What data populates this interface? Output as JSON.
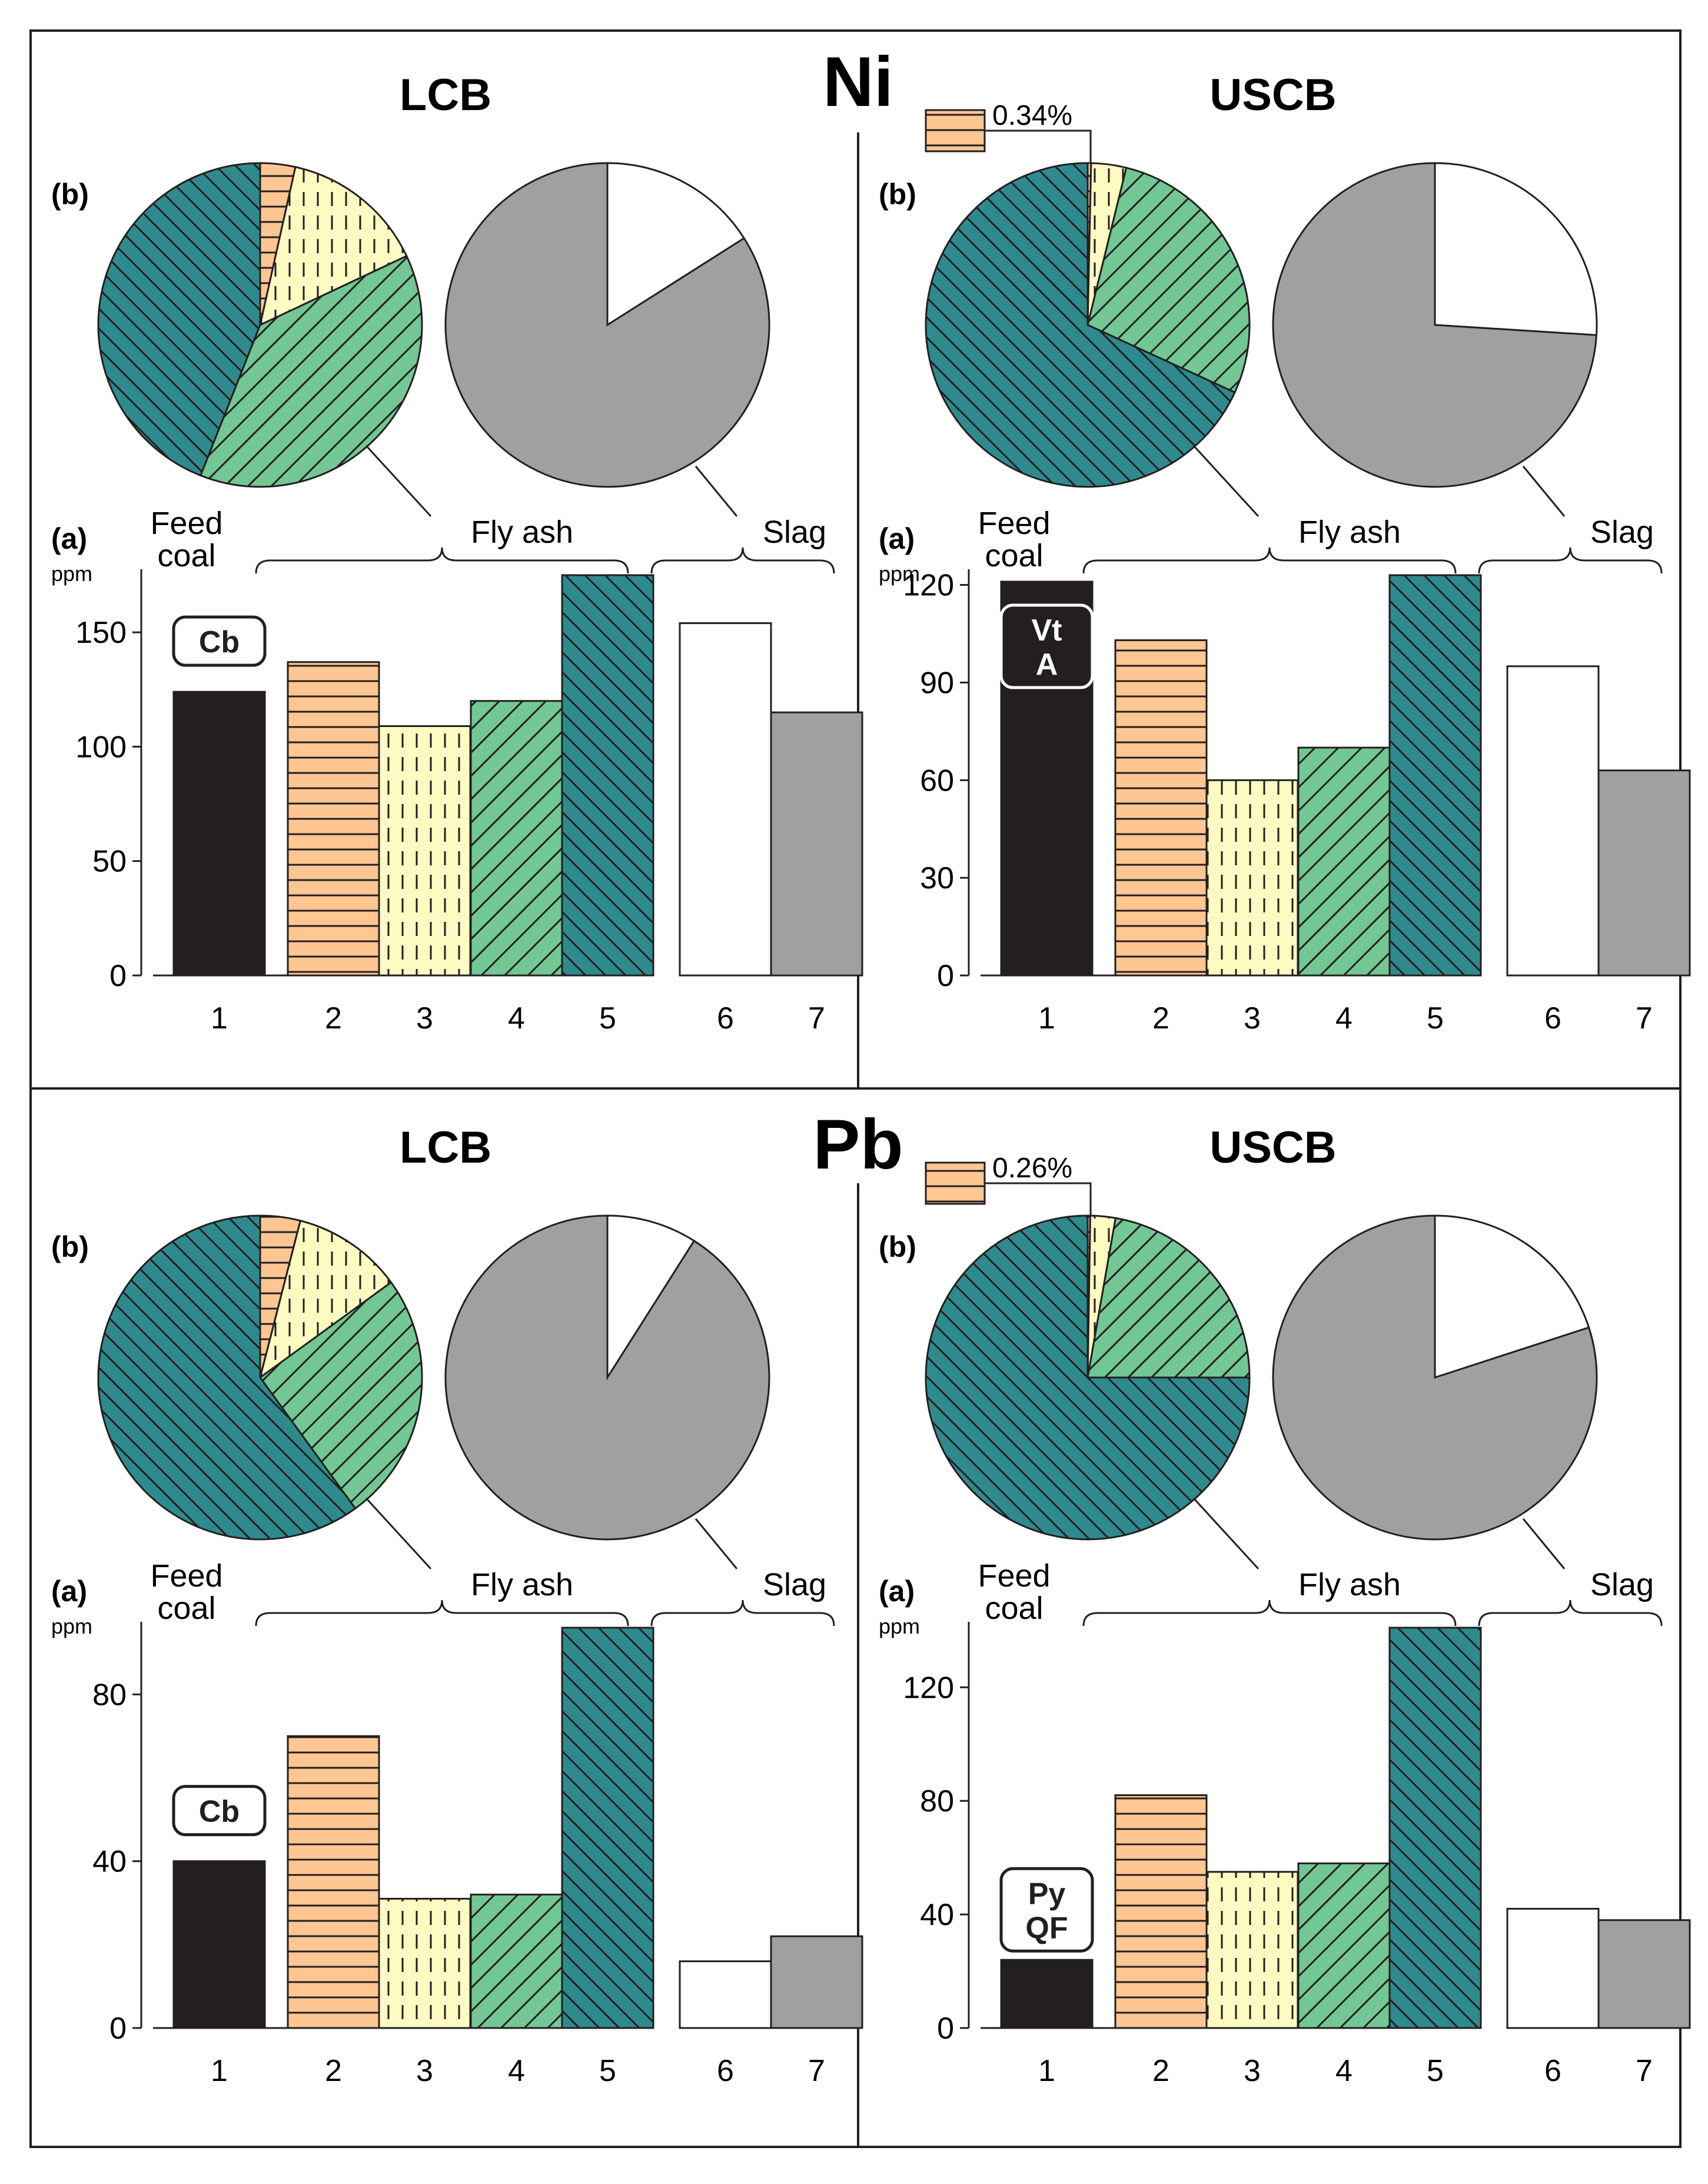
{
  "figure": {
    "sections": [
      {
        "element": "Ni"
      },
      {
        "element": "Pb"
      }
    ]
  },
  "colors": {
    "black": "#231f20",
    "orange": "#fdc693",
    "yellow": "#fdfbc2",
    "green": "#73c794",
    "teal": "#2f8a8e",
    "white": "#ffffff",
    "gray": "#a0a09e"
  },
  "chart_data": [
    {
      "type": "bar",
      "element": "Ni",
      "title": "LCB",
      "panel_a_label": "(a)",
      "panel_b_label": "(b)",
      "ylabel": "ppm",
      "ylim": [
        0,
        175
      ],
      "yticks": [
        0,
        50,
        100,
        150
      ],
      "categories": [
        "1",
        "2",
        "3",
        "4",
        "5",
        "6",
        "7"
      ],
      "values": [
        124,
        137,
        109,
        120,
        175,
        154,
        115
      ],
      "group_labels": {
        "feed": "Feed coal",
        "fly": "Fly ash",
        "slag": "Slag"
      },
      "tag": "Cb",
      "pie_fly_ash": [
        {
          "category": "2",
          "percent": 3.5
        },
        {
          "category": "3",
          "percent": 14.5
        },
        {
          "category": "4",
          "percent": 38
        },
        {
          "category": "5",
          "percent": 44
        }
      ],
      "pie_slag": [
        {
          "category": "6",
          "percent": 16
        },
        {
          "category": "7",
          "percent": 84
        }
      ]
    },
    {
      "type": "bar",
      "element": "Ni",
      "title": "USCB",
      "panel_a_label": "(a)",
      "panel_b_label": "(b)",
      "ylabel": "ppm",
      "ylim": [
        0,
        123
      ],
      "yticks": [
        0,
        30,
        60,
        90,
        120
      ],
      "categories": [
        "1",
        "2",
        "3",
        "4",
        "5",
        "6",
        "7"
      ],
      "values": [
        121,
        103,
        60,
        70,
        123,
        95,
        63
      ],
      "group_labels": {
        "feed": "Feed coal",
        "fly": "Fly ash",
        "slag": "Slag"
      },
      "tag": "Vt A",
      "tag_lines": [
        "Vt",
        "A"
      ],
      "pie_callout": "0.34%",
      "pie_fly_ash": [
        {
          "category": "2",
          "percent": 0.34
        },
        {
          "category": "3",
          "percent": 3.5
        },
        {
          "category": "4",
          "percent": 28
        },
        {
          "category": "5",
          "percent": 68.16
        }
      ],
      "pie_slag": [
        {
          "category": "6",
          "percent": 26
        },
        {
          "category": "7",
          "percent": 74
        }
      ]
    },
    {
      "type": "bar",
      "element": "Pb",
      "title": "LCB",
      "panel_a_label": "(a)",
      "panel_b_label": "(b)",
      "ylabel": "ppm",
      "ylim": [
        0,
        96
      ],
      "yticks": [
        0,
        40,
        80
      ],
      "categories": [
        "1",
        "2",
        "3",
        "4",
        "5",
        "6",
        "7"
      ],
      "values": [
        40,
        70,
        31,
        32,
        96,
        16,
        22
      ],
      "group_labels": {
        "feed": "Feed coal",
        "fly": "Fly ash",
        "slag": "Slag"
      },
      "tag": "Cb",
      "pie_fly_ash": [
        {
          "category": "2",
          "percent": 4
        },
        {
          "category": "3",
          "percent": 11
        },
        {
          "category": "4",
          "percent": 25
        },
        {
          "category": "5",
          "percent": 60
        }
      ],
      "pie_slag": [
        {
          "category": "6",
          "percent": 9
        },
        {
          "category": "7",
          "percent": 91
        }
      ]
    },
    {
      "type": "bar",
      "element": "Pb",
      "title": "USCB",
      "panel_a_label": "(a)",
      "panel_b_label": "(b)",
      "ylabel": "ppm",
      "ylim": [
        0,
        141
      ],
      "yticks": [
        0,
        40,
        80,
        120
      ],
      "categories": [
        "1",
        "2",
        "3",
        "4",
        "5",
        "6",
        "7"
      ],
      "values": [
        24,
        82,
        55,
        58,
        141,
        42,
        38
      ],
      "group_labels": {
        "feed": "Feed coal",
        "fly": "Fly ash",
        "slag": "Slag"
      },
      "tag": "Py QF",
      "tag_lines": [
        "Py",
        "QF"
      ],
      "pie_callout": "0.26%",
      "pie_fly_ash": [
        {
          "category": "2",
          "percent": 0.26
        },
        {
          "category": "3",
          "percent": 2.5
        },
        {
          "category": "4",
          "percent": 22.24
        },
        {
          "category": "5",
          "percent": 75
        }
      ],
      "pie_slag": [
        {
          "category": "6",
          "percent": 20
        },
        {
          "category": "7",
          "percent": 80
        }
      ]
    }
  ]
}
